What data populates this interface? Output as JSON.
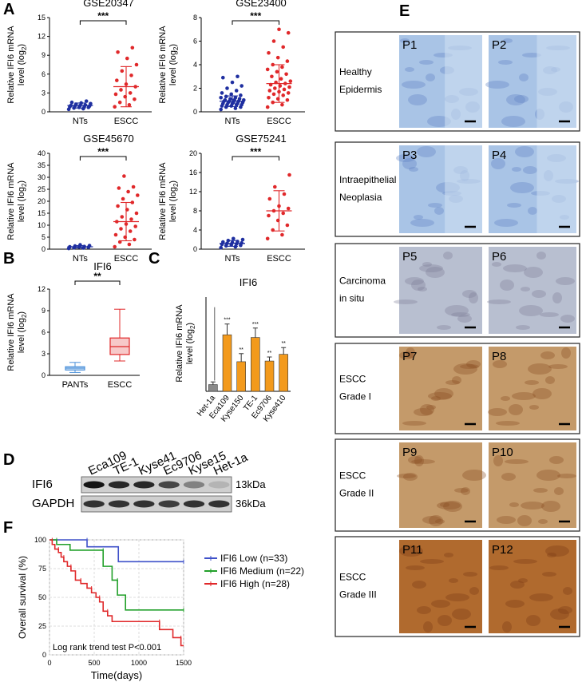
{
  "panel_labels": [
    "A",
    "B",
    "C",
    "D",
    "E",
    "F"
  ],
  "chart_data": [
    {
      "id": "A1",
      "type": "scatter",
      "title": "GSE20347",
      "ylabel": "Relative IFI6 mRNA level (log₂)",
      "categories": [
        "NTs",
        "ESCC"
      ],
      "yticks": [
        "0",
        "3",
        "6",
        "9",
        "12",
        "15"
      ],
      "ylim": [
        0,
        15
      ],
      "significance": "***",
      "groups": [
        {
          "name": "NTs",
          "color": "#1f2fa0",
          "mean": 1.0,
          "sd": 0.4,
          "values": [
            0.4,
            0.5,
            0.6,
            0.7,
            0.7,
            0.8,
            0.8,
            0.9,
            0.9,
            1.0,
            1.0,
            1.1,
            1.2,
            1.3,
            1.4,
            1.5,
            1.7
          ]
        },
        {
          "name": "ESCC",
          "color": "#e0282a",
          "mean": 4.0,
          "sd": 3.2,
          "values": [
            0.8,
            1.1,
            1.5,
            2.0,
            2.4,
            2.8,
            3.0,
            3.5,
            4.0,
            4.4,
            5.0,
            5.8,
            6.5,
            7.5,
            8.5,
            9.5,
            10.2
          ]
        }
      ]
    },
    {
      "id": "A2",
      "type": "scatter",
      "title": "GSE23400",
      "ylabel": "Relative IFI6 mRNA level (log₂)",
      "categories": [
        "NTs",
        "ESCC"
      ],
      "yticks": [
        "0",
        "2",
        "4",
        "6",
        "8"
      ],
      "ylim": [
        0,
        8
      ],
      "significance": "***",
      "groups": [
        {
          "name": "NTs",
          "color": "#1f2fa0",
          "mean": 0.9,
          "sd": 0.45,
          "values": [
            0.2,
            0.3,
            0.4,
            0.4,
            0.5,
            0.5,
            0.6,
            0.6,
            0.6,
            0.7,
            0.7,
            0.7,
            0.8,
            0.8,
            0.8,
            0.9,
            0.9,
            0.9,
            1.0,
            1.0,
            1.0,
            1.1,
            1.1,
            1.2,
            1.2,
            1.3,
            1.4,
            1.5,
            1.6,
            1.8,
            2.0,
            2.2,
            2.5,
            2.9,
            3.0
          ]
        },
        {
          "name": "ESCC",
          "color": "#e0282a",
          "mean": 2.4,
          "sd": 1.6,
          "values": [
            0.4,
            0.6,
            0.8,
            1.0,
            1.1,
            1.2,
            1.4,
            1.5,
            1.6,
            1.7,
            1.8,
            1.9,
            2.0,
            2.1,
            2.2,
            2.3,
            2.4,
            2.5,
            2.6,
            2.8,
            3.0,
            3.2,
            3.4,
            3.6,
            3.8,
            4.0,
            4.3,
            4.6,
            5.0,
            5.5,
            6.0,
            6.7,
            7.0
          ]
        }
      ]
    },
    {
      "id": "A3",
      "type": "scatter",
      "title": "GSE45670",
      "ylabel": "Relative IFI6 mRNA level (log₂)",
      "categories": [
        "NTs",
        "ESCC"
      ],
      "yticks": [
        "0",
        "5",
        "10",
        "15",
        "20",
        "25",
        "30",
        "35",
        "40"
      ],
      "ylim": [
        0,
        40
      ],
      "significance": "***",
      "groups": [
        {
          "name": "NTs",
          "color": "#1f2fa0",
          "mean": 1.0,
          "sd": 0.5,
          "values": [
            0.3,
            0.5,
            0.6,
            0.8,
            0.9,
            1.0,
            1.1,
            1.3,
            1.5,
            1.8
          ]
        },
        {
          "name": "ESCC",
          "color": "#e0282a",
          "mean": 11.5,
          "sd": 8.0,
          "values": [
            1.0,
            2.0,
            3.0,
            4.0,
            5.0,
            6.0,
            7.5,
            8.5,
            9.5,
            10.5,
            11.5,
            12.5,
            13.5,
            15.0,
            16.5,
            18.0,
            19.5,
            21.0,
            22.5,
            24.0,
            25.5,
            26.0,
            30.5
          ]
        }
      ]
    },
    {
      "id": "A4",
      "type": "scatter",
      "title": "GSE75241",
      "ylabel": "Relative IFI6 mRNA level (log₂)",
      "categories": [
        "NTs",
        "ESCC"
      ],
      "yticks": [
        "0",
        "4",
        "8",
        "12",
        "16",
        "20"
      ],
      "ylim": [
        0,
        20
      ],
      "significance": "***",
      "groups": [
        {
          "name": "NTs",
          "color": "#1f2fa0",
          "mean": 1.2,
          "sd": 0.6,
          "values": [
            0.3,
            0.5,
            0.7,
            0.8,
            0.9,
            1.0,
            1.1,
            1.2,
            1.3,
            1.4,
            1.5,
            1.6,
            1.8,
            2.0,
            2.2
          ]
        },
        {
          "name": "ESCC",
          "color": "#e0282a",
          "mean": 8.0,
          "sd": 4.2,
          "values": [
            2.2,
            3.0,
            4.0,
            5.0,
            6.0,
            7.0,
            7.5,
            8.0,
            8.5,
            9.0,
            10.5,
            11.5,
            13.0,
            15.5
          ]
        }
      ]
    },
    {
      "id": "B",
      "type": "box",
      "title": "IFI6",
      "ylabel": "Relative IFI6 mRNA level (log₂)",
      "categories": [
        "PANTs",
        "ESCC"
      ],
      "yticks": [
        "0",
        "3",
        "6",
        "9",
        "12"
      ],
      "ylim": [
        0,
        12
      ],
      "significance": "**",
      "boxes": [
        {
          "name": "PANTs",
          "color": "#4a90d9",
          "min": 0.4,
          "q1": 0.75,
          "median": 1.0,
          "q3": 1.2,
          "max": 1.8
        },
        {
          "name": "ESCC",
          "color": "#e0282a",
          "min": 2.0,
          "q1": 2.9,
          "median": 4.0,
          "q3": 5.2,
          "max": 9.2
        }
      ]
    },
    {
      "id": "C",
      "type": "bar",
      "title": "IFI6",
      "ylabel": "Relative IFI6 mRNA level (log₂)",
      "categories": [
        "Het-1a",
        "Eca109",
        "Kyse150",
        "TE-1",
        "Ec9706",
        "Kyse410"
      ],
      "values": [
        1.0,
        8.4,
        4.4,
        8.0,
        4.5,
        5.5
      ],
      "errors": [
        0.4,
        1.6,
        1.2,
        1.4,
        0.6,
        1.0
      ],
      "significance": [
        "",
        "***",
        "**",
        "***",
        "**",
        "**"
      ],
      "colors": [
        "#8a8a8a",
        "#f39a1c",
        "#f39a1c",
        "#f39a1c",
        "#f39a1c",
        "#f39a1c"
      ],
      "ylim": [
        0,
        14
      ]
    },
    {
      "id": "F",
      "type": "line",
      "subtype": "kaplan-meier",
      "xlabel": "Time(days)",
      "ylabel": "Overall survival (%)",
      "xticks": [
        "0",
        "500",
        "1000",
        "1500"
      ],
      "xlim": [
        0,
        1500
      ],
      "yticks": [
        "0",
        "25",
        "50",
        "75",
        "100"
      ],
      "ylim": [
        0,
        100
      ],
      "annotation": "Log rank trend test P<0.001",
      "legend_position": "right",
      "series": [
        {
          "name": "IFI6 Low (n=33)",
          "color": "#3f51c9",
          "steps": [
            [
              0,
              100
            ],
            [
              420,
              100
            ],
            [
              420,
              94
            ],
            [
              770,
              94
            ],
            [
              770,
              81
            ],
            [
              1500,
              81
            ]
          ]
        },
        {
          "name": "IFI6 Medium (n=22)",
          "color": "#22a02a",
          "steps": [
            [
              0,
              100
            ],
            [
              80,
              100
            ],
            [
              80,
              96
            ],
            [
              230,
              96
            ],
            [
              230,
              91
            ],
            [
              600,
              91
            ],
            [
              600,
              77
            ],
            [
              700,
              77
            ],
            [
              700,
              65
            ],
            [
              760,
              65
            ],
            [
              760,
              52
            ],
            [
              850,
              52
            ],
            [
              850,
              39
            ],
            [
              1500,
              39
            ]
          ]
        },
        {
          "name": "IFI6 High (n=28)",
          "color": "#e0282a",
          "steps": [
            [
              0,
              100
            ],
            [
              30,
              100
            ],
            [
              30,
              96
            ],
            [
              60,
              96
            ],
            [
              60,
              92
            ],
            [
              100,
              92
            ],
            [
              100,
              89
            ],
            [
              130,
              89
            ],
            [
              130,
              85
            ],
            [
              160,
              85
            ],
            [
              160,
              81
            ],
            [
              200,
              81
            ],
            [
              200,
              77
            ],
            [
              240,
              77
            ],
            [
              240,
              73
            ],
            [
              290,
              73
            ],
            [
              290,
              65
            ],
            [
              350,
              65
            ],
            [
              350,
              62
            ],
            [
              420,
              62
            ],
            [
              420,
              58
            ],
            [
              470,
              58
            ],
            [
              470,
              54
            ],
            [
              520,
              54
            ],
            [
              520,
              50
            ],
            [
              560,
              50
            ],
            [
              560,
              46
            ],
            [
              600,
              46
            ],
            [
              600,
              38
            ],
            [
              650,
              38
            ],
            [
              650,
              34
            ],
            [
              700,
              34
            ],
            [
              700,
              29
            ],
            [
              1230,
              29
            ],
            [
              1230,
              22
            ],
            [
              1380,
              22
            ],
            [
              1380,
              15
            ],
            [
              1470,
              15
            ],
            [
              1470,
              8
            ],
            [
              1500,
              8
            ]
          ]
        }
      ]
    }
  ],
  "western_blot": {
    "cell_lines": [
      "Eca109",
      "TE-1",
      "Kyse41",
      "Ec9706",
      "Kyse15",
      "Het-1a"
    ],
    "rows": [
      {
        "label": "IFI6",
        "size": "13kDa",
        "intensities": [
          0.95,
          0.85,
          0.85,
          0.7,
          0.4,
          0.15
        ]
      },
      {
        "label": "GAPDH",
        "size": "36kDa",
        "intensities": [
          0.8,
          0.8,
          0.8,
          0.75,
          0.8,
          0.8
        ]
      }
    ]
  },
  "ihc": {
    "rows": [
      {
        "label_lines": [
          "Healthy",
          "Epidermis"
        ],
        "panels": [
          "P1",
          "P2"
        ],
        "stain": 0.0
      },
      {
        "label_lines": [
          "Intraepithelial",
          "Neoplasia"
        ],
        "panels": [
          "P3",
          "P4"
        ],
        "stain": 0.2
      },
      {
        "label_lines": [
          "Carcinoma",
          "in situ"
        ],
        "panels": [
          "P5",
          "P6"
        ],
        "stain": 0.45
      },
      {
        "label_lines": [
          "ESCC",
          "Grade I"
        ],
        "panels": [
          "P7",
          "P8"
        ],
        "stain": 0.6
      },
      {
        "label_lines": [
          "ESCC",
          "Grade II"
        ],
        "panels": [
          "P9",
          "P10"
        ],
        "stain": 0.8
      },
      {
        "label_lines": [
          "ESCC",
          "Grade III"
        ],
        "panels": [
          "P11",
          "P12"
        ],
        "stain": 1.0
      }
    ]
  }
}
